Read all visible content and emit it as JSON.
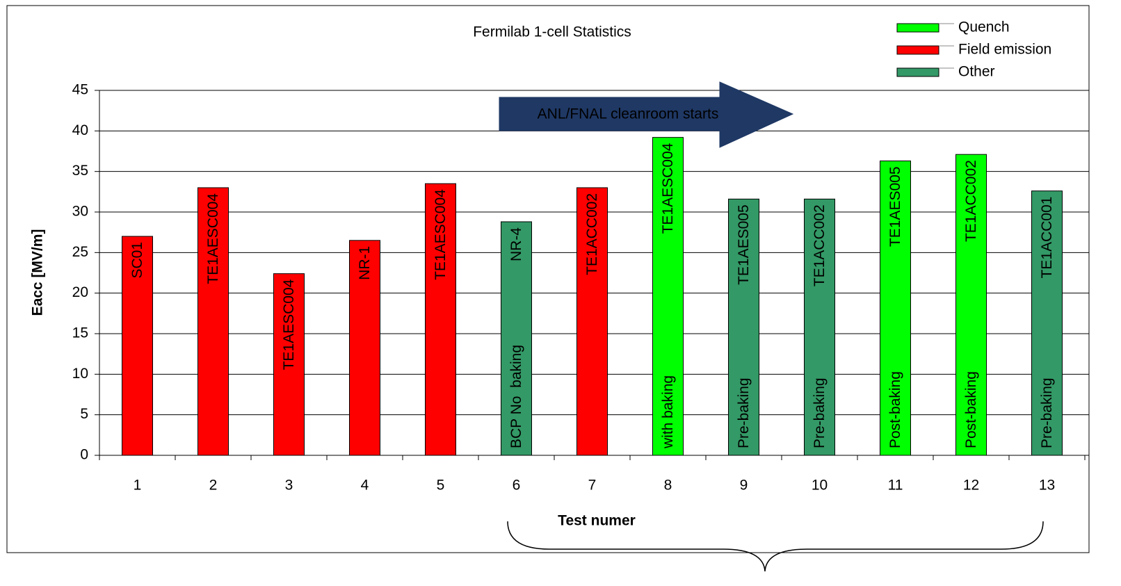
{
  "chart_data": {
    "type": "bar",
    "title": "Fermilab 1-cell Statistics",
    "x_label": "Test numer",
    "y_label": "Eacc [MV/m]",
    "categories": [
      "1",
      "2",
      "3",
      "4",
      "5",
      "6",
      "7",
      "8",
      "9",
      "10",
      "11",
      "12",
      "13"
    ],
    "series": [
      {
        "name": "Quench",
        "color": "#00ff00",
        "text_color": "#000000",
        "values": [
          null,
          null,
          null,
          null,
          null,
          null,
          null,
          39.2,
          null,
          null,
          36.3,
          37.1,
          null
        ]
      },
      {
        "name": "Field emission",
        "color": "#ff0000",
        "text_color": "#ffffff",
        "values": [
          27,
          33,
          22.4,
          26.5,
          33.5,
          null,
          33,
          null,
          null,
          null,
          null,
          null,
          null
        ]
      },
      {
        "name": "Other",
        "color": "#339966",
        "text_color": "#ffffff",
        "values": [
          null,
          null,
          null,
          null,
          null,
          28.8,
          null,
          null,
          31.6,
          31.6,
          null,
          null,
          32.6
        ]
      }
    ],
    "bar_labels": [
      "SC01",
      "TE1AESC004",
      "TE1AESC004",
      "NR-1",
      "TE1AESC004",
      "NR-4",
      "TE1ACC002",
      "TE1AESC004",
      "TE1AES005",
      "TE1ACC002",
      "TE1AES005",
      "TE1ACC002",
      "TE1ACC001"
    ],
    "bar_notes": [
      null,
      null,
      null,
      null,
      null,
      "BCP No  baking",
      null,
      "with baking",
      "Pre-baking",
      "Pre-baking",
      "Post-baking",
      "Post-baking",
      "Pre-baking"
    ],
    "annotation": "ANL/FNAL cleanroom starts",
    "ylim": [
      0,
      45
    ],
    "yticks": [
      0,
      5,
      10,
      15,
      20,
      25,
      30,
      35,
      40,
      45
    ],
    "grid": true,
    "legend": "top-right"
  }
}
